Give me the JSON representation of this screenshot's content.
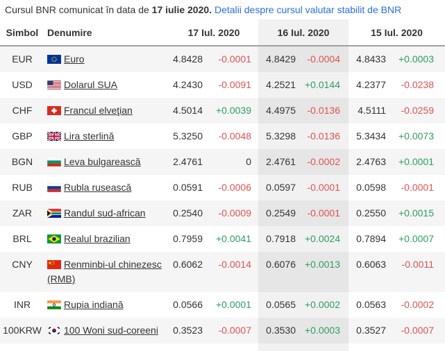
{
  "intro": {
    "text": "Cursul BNR comunicat în data de ",
    "date": "17 iulie 2020.",
    "link": "Detalii despre cursul valutar stabilit de BNR"
  },
  "table": {
    "headers": {
      "symbol": "Simbol",
      "name": "Denumire",
      "dates": [
        "17 Iul. 2020",
        "16 Iul. 2020",
        "15 Iul. 2020"
      ]
    },
    "rows": [
      {
        "symbol": "EUR",
        "flag": "eu-flag-icon",
        "name": "Euro",
        "rates": [
          {
            "value": "4.8428",
            "change": "-0.0001"
          },
          {
            "value": "4.8429",
            "change": "-0.0004"
          },
          {
            "value": "4.8433",
            "change": "+0.0003"
          }
        ]
      },
      {
        "symbol": "USD",
        "flag": "us-flag-icon",
        "name": "Dolarul SUA",
        "rates": [
          {
            "value": "4.2430",
            "change": "-0.0091"
          },
          {
            "value": "4.2521",
            "change": "+0.0144"
          },
          {
            "value": "4.2377",
            "change": "-0.0238"
          }
        ]
      },
      {
        "symbol": "CHF",
        "flag": "ch-flag-icon",
        "name": "Francul elveţian",
        "rates": [
          {
            "value": "4.5014",
            "change": "+0.0039"
          },
          {
            "value": "4.4975",
            "change": "-0.0136"
          },
          {
            "value": "4.5111",
            "change": "-0.0259"
          }
        ]
      },
      {
        "symbol": "GBP",
        "flag": "gb-flag-icon",
        "name": "Lira sterlină",
        "rates": [
          {
            "value": "5.3250",
            "change": "-0.0048"
          },
          {
            "value": "5.3298",
            "change": "-0.0136"
          },
          {
            "value": "5.3434",
            "change": "+0.0073"
          }
        ]
      },
      {
        "symbol": "BGN",
        "flag": "bg-flag-icon",
        "name": "Leva bulgarească",
        "rates": [
          {
            "value": "2.4761",
            "change": "0"
          },
          {
            "value": "2.4761",
            "change": "-0.0002"
          },
          {
            "value": "2.4763",
            "change": "+0.0001"
          }
        ]
      },
      {
        "symbol": "RUB",
        "flag": "ru-flag-icon",
        "name": "Rubla rusească",
        "rates": [
          {
            "value": "0.0591",
            "change": "-0.0006"
          },
          {
            "value": "0.0597",
            "change": "-0.0001"
          },
          {
            "value": "0.0598",
            "change": "-0.0001"
          }
        ]
      },
      {
        "symbol": "ZAR",
        "flag": "za-flag-icon",
        "name": "Randul sud-african",
        "rates": [
          {
            "value": "0.2540",
            "change": "-0.0009"
          },
          {
            "value": "0.2549",
            "change": "-0.0001"
          },
          {
            "value": "0.2550",
            "change": "+0.0015"
          }
        ]
      },
      {
        "symbol": "BRL",
        "flag": "br-flag-icon",
        "name": "Realul brazilian",
        "rates": [
          {
            "value": "0.7959",
            "change": "+0.0041"
          },
          {
            "value": "0.7918",
            "change": "+0.0024"
          },
          {
            "value": "0.7894",
            "change": "+0.0007"
          }
        ]
      },
      {
        "symbol": "CNY",
        "flag": "cn-flag-icon",
        "name": "Renminbi-ul chinezesc (RMB)",
        "rates": [
          {
            "value": "0.6062",
            "change": "-0.0014"
          },
          {
            "value": "0.6076",
            "change": "+0.0013"
          },
          {
            "value": "0.6063",
            "change": "-0.0011"
          }
        ]
      },
      {
        "symbol": "INR",
        "flag": "in-flag-icon",
        "name": "Rupia indiană",
        "rates": [
          {
            "value": "0.0566",
            "change": "+0.0001"
          },
          {
            "value": "0.0565",
            "change": "+0.0002"
          },
          {
            "value": "0.0563",
            "change": "-0.0002"
          }
        ]
      },
      {
        "symbol": "100KRW",
        "flag": "kr-flag-icon",
        "name": "100 Woni sud-coreeni",
        "rates": [
          {
            "value": "0.3523",
            "change": "-0.0007"
          },
          {
            "value": "0.3530",
            "change": "+0.0003"
          },
          {
            "value": "0.3527",
            "change": "-0.0007"
          }
        ]
      }
    ]
  },
  "colors": {
    "positive": "#2e9e60",
    "negative": "#e05252",
    "link_blue": "#2a70d8",
    "text": "#333333",
    "row_stripe": "#f5f5f5",
    "header_border": "#a0a0a0"
  }
}
